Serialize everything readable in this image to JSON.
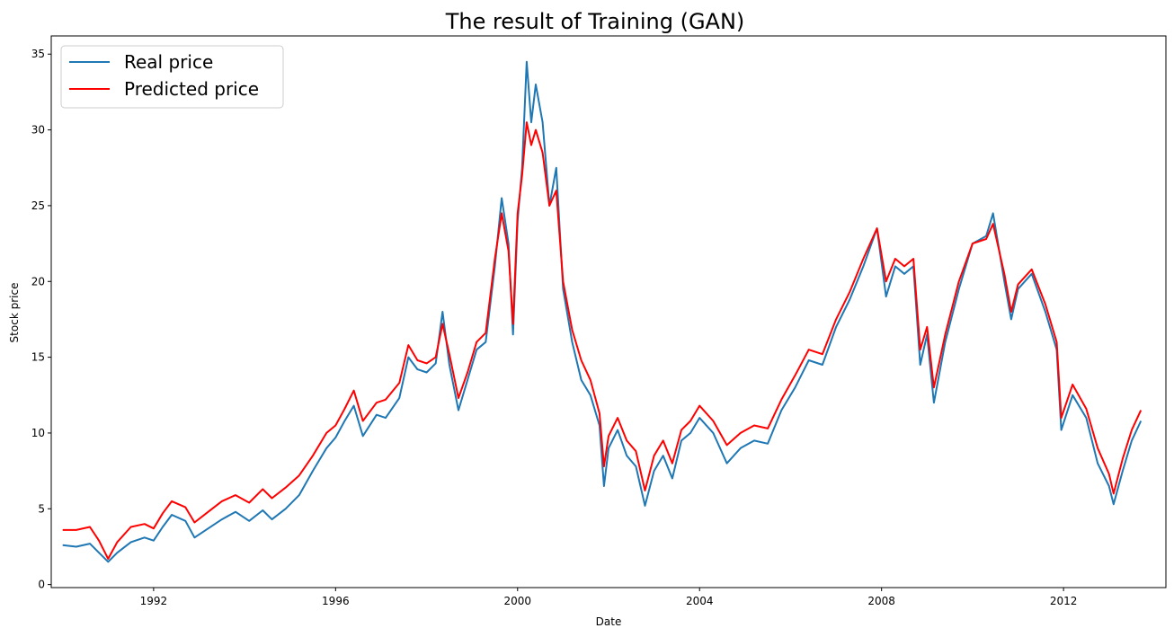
{
  "chart_data": {
    "type": "line",
    "title": "The result of Training (GAN)",
    "xlabel": "Date",
    "ylabel": "Stock price",
    "xlim": [
      1989.75,
      2014.25
    ],
    "ylim": [
      -0.2,
      36.2
    ],
    "xticks": [
      1992,
      1996,
      2000,
      2004,
      2008,
      2012
    ],
    "yticks": [
      0,
      5,
      10,
      15,
      20,
      25,
      30,
      35
    ],
    "grid": false,
    "legend": {
      "position": "top-left",
      "entries": [
        "Real price",
        "Predicted price"
      ]
    },
    "colors": {
      "Real price": "#1f77b4",
      "Predicted price": "#ff0000"
    },
    "series": [
      {
        "name": "Real price",
        "points": [
          [
            1990.0,
            2.6
          ],
          [
            1990.3,
            2.5
          ],
          [
            1990.6,
            2.7
          ],
          [
            1990.8,
            2.1
          ],
          [
            1991.0,
            1.5
          ],
          [
            1991.2,
            2.1
          ],
          [
            1991.5,
            2.8
          ],
          [
            1991.8,
            3.1
          ],
          [
            1992.0,
            2.9
          ],
          [
            1992.2,
            3.8
          ],
          [
            1992.4,
            4.6
          ],
          [
            1992.7,
            4.2
          ],
          [
            1992.9,
            3.1
          ],
          [
            1993.2,
            3.7
          ],
          [
            1993.5,
            4.3
          ],
          [
            1993.8,
            4.8
          ],
          [
            1994.1,
            4.2
          ],
          [
            1994.4,
            4.9
          ],
          [
            1994.6,
            4.3
          ],
          [
            1994.9,
            5.0
          ],
          [
            1995.2,
            5.9
          ],
          [
            1995.5,
            7.5
          ],
          [
            1995.8,
            9.0
          ],
          [
            1996.0,
            9.7
          ],
          [
            1996.2,
            10.8
          ],
          [
            1996.4,
            11.8
          ],
          [
            1996.6,
            9.8
          ],
          [
            1996.9,
            11.2
          ],
          [
            1997.1,
            11.0
          ],
          [
            1997.4,
            12.3
          ],
          [
            1997.6,
            15.0
          ],
          [
            1997.8,
            14.2
          ],
          [
            1998.0,
            14.0
          ],
          [
            1998.2,
            14.6
          ],
          [
            1998.35,
            18.0
          ],
          [
            1998.5,
            14.5
          ],
          [
            1998.7,
            11.5
          ],
          [
            1998.9,
            13.5
          ],
          [
            1999.1,
            15.5
          ],
          [
            1999.3,
            16.0
          ],
          [
            1999.5,
            21.0
          ],
          [
            1999.65,
            25.5
          ],
          [
            1999.8,
            22.5
          ],
          [
            1999.9,
            16.5
          ],
          [
            2000.0,
            24.0
          ],
          [
            2000.1,
            27.5
          ],
          [
            2000.2,
            34.5
          ],
          [
            2000.3,
            30.5
          ],
          [
            2000.4,
            33.0
          ],
          [
            2000.55,
            30.5
          ],
          [
            2000.7,
            25.0
          ],
          [
            2000.85,
            27.5
          ],
          [
            2001.0,
            19.5
          ],
          [
            2001.2,
            16.0
          ],
          [
            2001.4,
            13.5
          ],
          [
            2001.6,
            12.5
          ],
          [
            2001.8,
            10.5
          ],
          [
            2001.9,
            6.5
          ],
          [
            2002.0,
            9.0
          ],
          [
            2002.2,
            10.2
          ],
          [
            2002.4,
            8.5
          ],
          [
            2002.6,
            7.8
          ],
          [
            2002.8,
            5.2
          ],
          [
            2003.0,
            7.5
          ],
          [
            2003.2,
            8.5
          ],
          [
            2003.4,
            7.0
          ],
          [
            2003.6,
            9.5
          ],
          [
            2003.8,
            10.0
          ],
          [
            2004.0,
            11.0
          ],
          [
            2004.3,
            10.0
          ],
          [
            2004.6,
            8.0
          ],
          [
            2004.9,
            9.0
          ],
          [
            2005.2,
            9.5
          ],
          [
            2005.5,
            9.3
          ],
          [
            2005.8,
            11.5
          ],
          [
            2006.1,
            13.0
          ],
          [
            2006.4,
            14.8
          ],
          [
            2006.7,
            14.5
          ],
          [
            2007.0,
            17.0
          ],
          [
            2007.3,
            18.8
          ],
          [
            2007.6,
            21.0
          ],
          [
            2007.9,
            23.5
          ],
          [
            2008.1,
            19.0
          ],
          [
            2008.3,
            21.0
          ],
          [
            2008.5,
            20.5
          ],
          [
            2008.7,
            21.0
          ],
          [
            2008.85,
            14.5
          ],
          [
            2009.0,
            16.5
          ],
          [
            2009.15,
            12.0
          ],
          [
            2009.4,
            16.0
          ],
          [
            2009.7,
            19.5
          ],
          [
            2010.0,
            22.5
          ],
          [
            2010.3,
            23.0
          ],
          [
            2010.45,
            24.5
          ],
          [
            2010.7,
            20.0
          ],
          [
            2010.85,
            17.5
          ],
          [
            2011.0,
            19.5
          ],
          [
            2011.3,
            20.5
          ],
          [
            2011.6,
            18.0
          ],
          [
            2011.85,
            15.5
          ],
          [
            2011.95,
            10.2
          ],
          [
            2012.2,
            12.5
          ],
          [
            2012.5,
            11.0
          ],
          [
            2012.75,
            8.0
          ],
          [
            2013.0,
            6.5
          ],
          [
            2013.1,
            5.3
          ],
          [
            2013.3,
            7.5
          ],
          [
            2013.5,
            9.5
          ],
          [
            2013.7,
            10.8
          ]
        ]
      },
      {
        "name": "Predicted price",
        "points": [
          [
            1990.0,
            3.6
          ],
          [
            1990.3,
            3.6
          ],
          [
            1990.6,
            3.8
          ],
          [
            1990.8,
            2.9
          ],
          [
            1991.0,
            1.7
          ],
          [
            1991.2,
            2.8
          ],
          [
            1991.5,
            3.8
          ],
          [
            1991.8,
            4.0
          ],
          [
            1992.0,
            3.7
          ],
          [
            1992.2,
            4.7
          ],
          [
            1992.4,
            5.5
          ],
          [
            1992.7,
            5.1
          ],
          [
            1992.9,
            4.1
          ],
          [
            1993.2,
            4.8
          ],
          [
            1993.5,
            5.5
          ],
          [
            1993.8,
            5.9
          ],
          [
            1994.1,
            5.4
          ],
          [
            1994.4,
            6.3
          ],
          [
            1994.6,
            5.7
          ],
          [
            1994.9,
            6.4
          ],
          [
            1995.2,
            7.2
          ],
          [
            1995.5,
            8.5
          ],
          [
            1995.8,
            10.0
          ],
          [
            1996.0,
            10.5
          ],
          [
            1996.2,
            11.6
          ],
          [
            1996.4,
            12.8
          ],
          [
            1996.6,
            10.8
          ],
          [
            1996.9,
            12.0
          ],
          [
            1997.1,
            12.2
          ],
          [
            1997.4,
            13.3
          ],
          [
            1997.6,
            15.8
          ],
          [
            1997.8,
            14.8
          ],
          [
            1998.0,
            14.6
          ],
          [
            1998.2,
            15.0
          ],
          [
            1998.35,
            17.2
          ],
          [
            1998.5,
            15.2
          ],
          [
            1998.7,
            12.3
          ],
          [
            1998.9,
            14.0
          ],
          [
            1999.1,
            16.0
          ],
          [
            1999.3,
            16.6
          ],
          [
            1999.5,
            21.5
          ],
          [
            1999.65,
            24.5
          ],
          [
            1999.8,
            22.0
          ],
          [
            1999.9,
            17.2
          ],
          [
            2000.0,
            24.5
          ],
          [
            2000.1,
            27.0
          ],
          [
            2000.2,
            30.5
          ],
          [
            2000.3,
            29.0
          ],
          [
            2000.4,
            30.0
          ],
          [
            2000.55,
            28.5
          ],
          [
            2000.7,
            25.0
          ],
          [
            2000.85,
            26.0
          ],
          [
            2001.0,
            20.0
          ],
          [
            2001.2,
            16.8
          ],
          [
            2001.4,
            14.8
          ],
          [
            2001.6,
            13.5
          ],
          [
            2001.8,
            11.3
          ],
          [
            2001.9,
            7.8
          ],
          [
            2002.0,
            9.8
          ],
          [
            2002.2,
            11.0
          ],
          [
            2002.4,
            9.5
          ],
          [
            2002.6,
            8.8
          ],
          [
            2002.8,
            6.2
          ],
          [
            2003.0,
            8.5
          ],
          [
            2003.2,
            9.5
          ],
          [
            2003.4,
            8.0
          ],
          [
            2003.6,
            10.2
          ],
          [
            2003.8,
            10.8
          ],
          [
            2004.0,
            11.8
          ],
          [
            2004.3,
            10.8
          ],
          [
            2004.6,
            9.2
          ],
          [
            2004.9,
            10.0
          ],
          [
            2005.2,
            10.5
          ],
          [
            2005.5,
            10.3
          ],
          [
            2005.8,
            12.2
          ],
          [
            2006.1,
            13.8
          ],
          [
            2006.4,
            15.5
          ],
          [
            2006.7,
            15.2
          ],
          [
            2007.0,
            17.5
          ],
          [
            2007.3,
            19.3
          ],
          [
            2007.6,
            21.5
          ],
          [
            2007.9,
            23.5
          ],
          [
            2008.1,
            20.0
          ],
          [
            2008.3,
            21.5
          ],
          [
            2008.5,
            21.0
          ],
          [
            2008.7,
            21.5
          ],
          [
            2008.85,
            15.5
          ],
          [
            2009.0,
            17.0
          ],
          [
            2009.15,
            13.0
          ],
          [
            2009.4,
            16.5
          ],
          [
            2009.7,
            20.0
          ],
          [
            2010.0,
            22.5
          ],
          [
            2010.3,
            22.8
          ],
          [
            2010.45,
            23.8
          ],
          [
            2010.7,
            20.5
          ],
          [
            2010.85,
            18.0
          ],
          [
            2011.0,
            19.8
          ],
          [
            2011.3,
            20.8
          ],
          [
            2011.6,
            18.5
          ],
          [
            2011.85,
            16.0
          ],
          [
            2011.95,
            11.0
          ],
          [
            2012.2,
            13.2
          ],
          [
            2012.5,
            11.6
          ],
          [
            2012.75,
            9.0
          ],
          [
            2013.0,
            7.3
          ],
          [
            2013.1,
            6.0
          ],
          [
            2013.3,
            8.3
          ],
          [
            2013.5,
            10.2
          ],
          [
            2013.7,
            11.5
          ]
        ]
      }
    ]
  }
}
